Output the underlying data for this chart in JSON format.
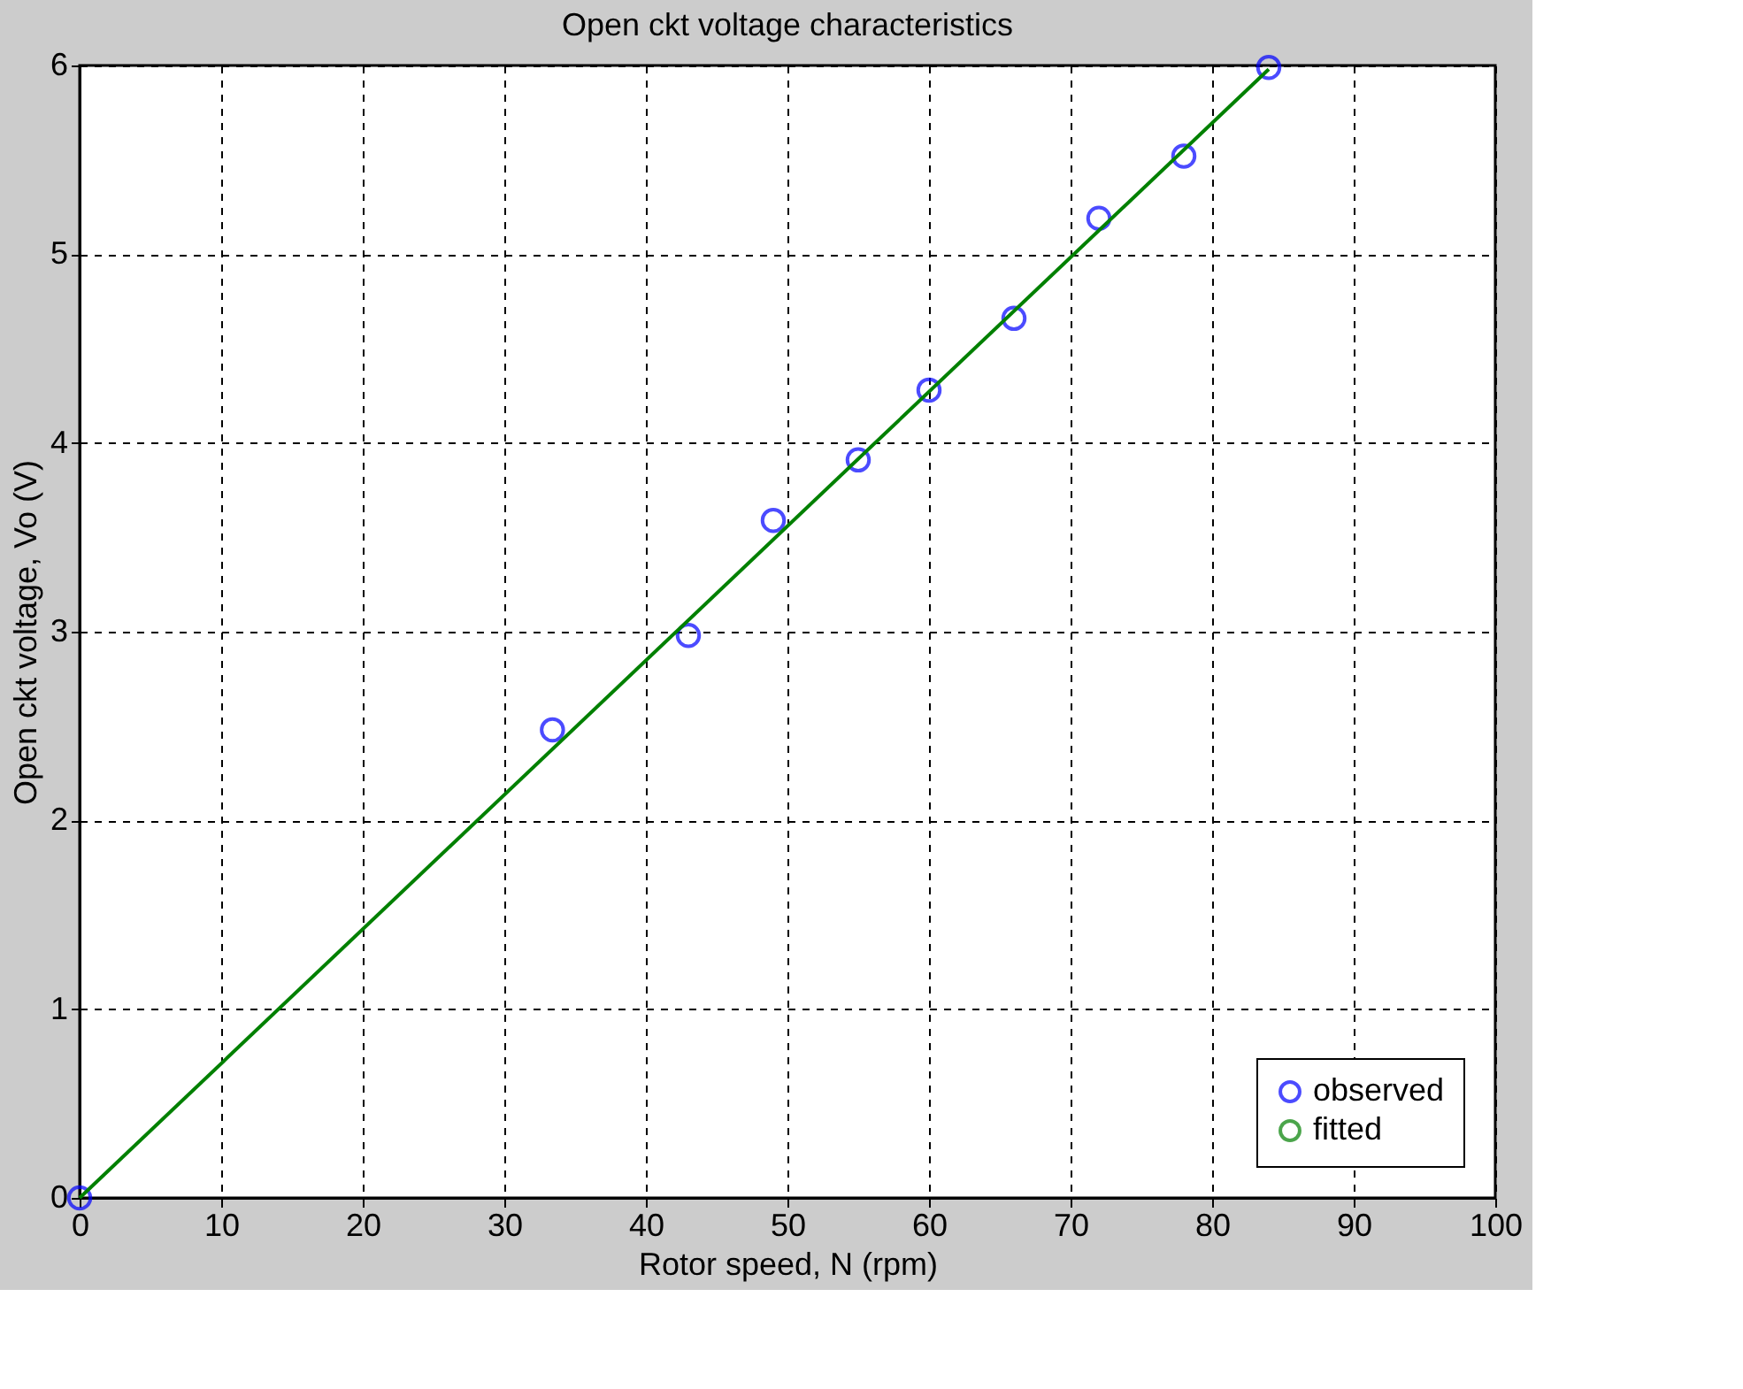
{
  "chart_data": {
    "type": "scatter",
    "title": "Open ckt voltage characteristics",
    "xlabel": "Rotor speed, N (rpm)",
    "ylabel": "Open ckt voltage, Vo (V)",
    "series": [
      {
        "name": "observed",
        "color": "#0000ff",
        "marker": "circle",
        "x": [
          0,
          33.4,
          43,
          49,
          55,
          60,
          66,
          72,
          78,
          84
        ],
        "values": [
          0,
          2.48,
          2.98,
          3.59,
          3.91,
          4.28,
          4.66,
          5.19,
          5.52,
          5.99
        ]
      },
      {
        "name": "fitted",
        "type": "line",
        "color": "#008000",
        "marker": "none",
        "line_style": "solid",
        "x": [
          0,
          84
        ],
        "values": [
          0,
          5.98
        ]
      }
    ],
    "xlim": [
      0,
      100
    ],
    "xticks": [
      0,
      10,
      20,
      30,
      40,
      50,
      60,
      70,
      80,
      90,
      100
    ],
    "ylim": [
      0,
      6
    ],
    "yticks": [
      0,
      1,
      2,
      3,
      4,
      5,
      6
    ],
    "grid": true,
    "legend": "bottom right"
  }
}
